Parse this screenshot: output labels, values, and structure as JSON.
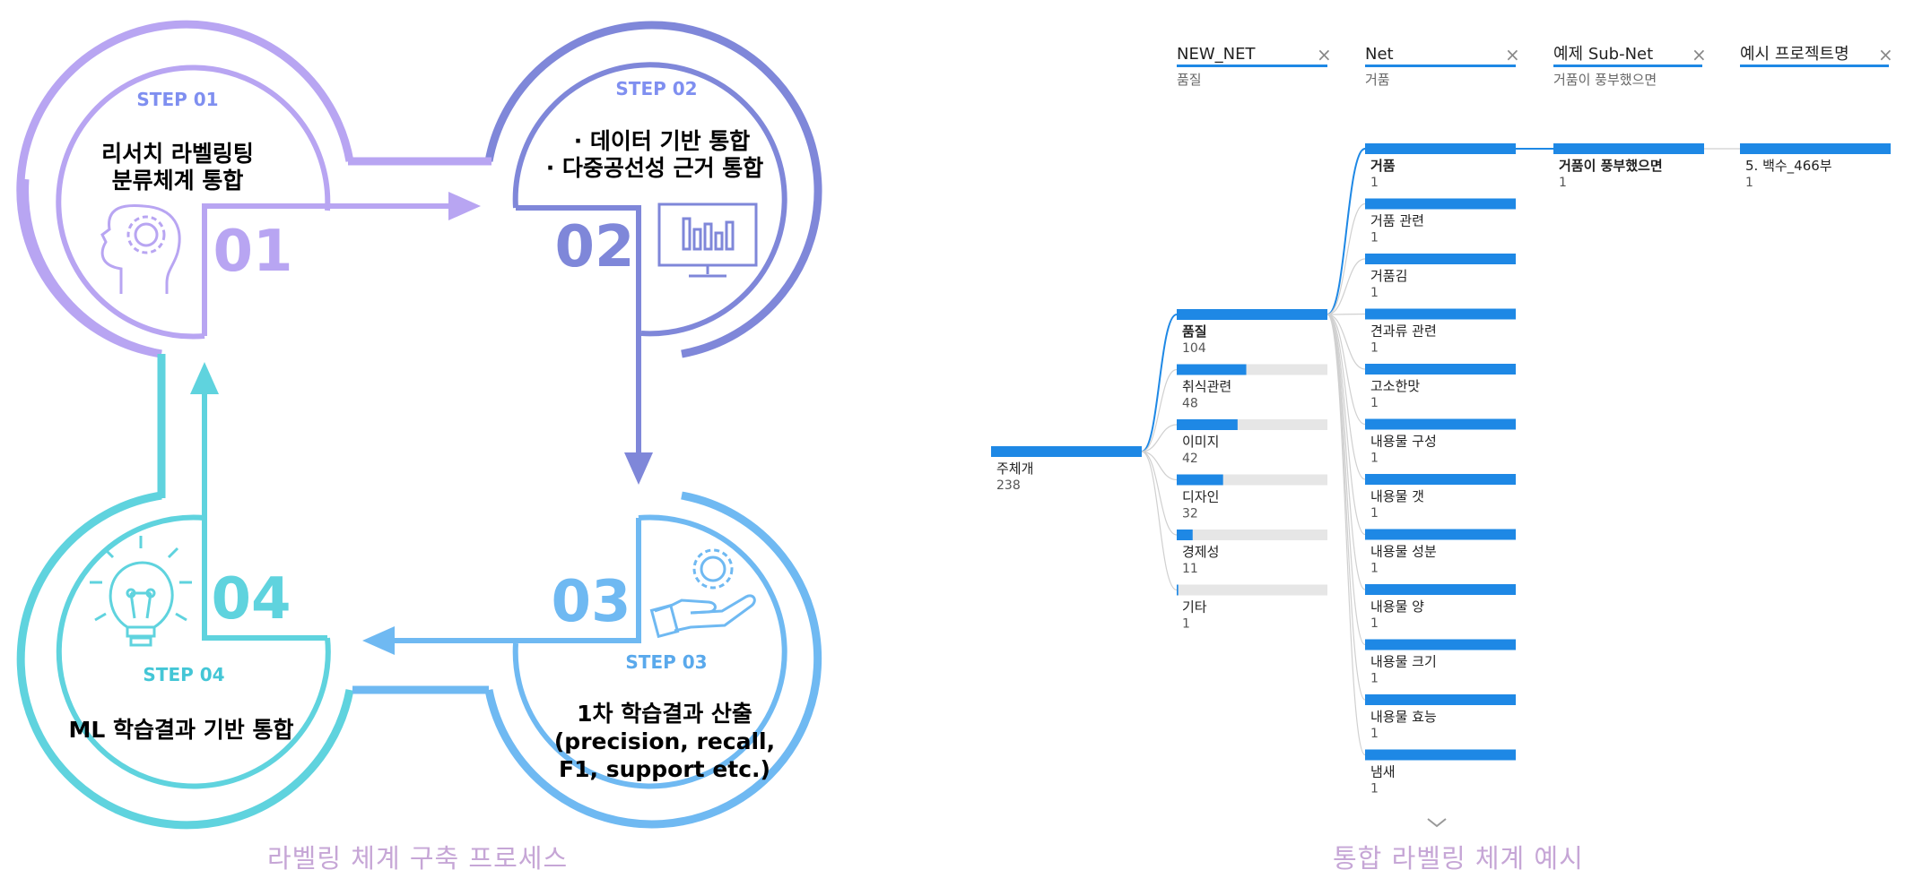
{
  "process": {
    "steps": [
      {
        "step_label": "STEP 01",
        "number": "01",
        "lines": [
          "리서치 라벨링팅",
          "분류체계 통합"
        ],
        "icon": "head-gear-icon",
        "color": "#b8a5f2",
        "dark": "#a58ef0"
      },
      {
        "step_label": "STEP 02",
        "number": "02",
        "lines": [
          "· 데이터 기반 통합",
          "· 다중공선성 근거 통합"
        ],
        "icon": "monitor-chart-icon",
        "color": "#7f87d9",
        "dark": "#6f78d2"
      },
      {
        "step_label": "STEP 03",
        "number": "03",
        "lines": [
          "1차 학습결과 산출",
          "(precision, recall,",
          "F1, support etc.)"
        ],
        "icon": "hand-gear-icon",
        "color": "#6fb9f2",
        "dark": "#5aa9ec"
      },
      {
        "step_label": "STEP 04",
        "number": "04",
        "lines": [
          "ML 학습결과 기반 통합"
        ],
        "icon": "lightbulb-icon",
        "color": "#5fd3de",
        "dark": "#44c6d6"
      }
    ],
    "caption": "라벨링 체계 구축 프로세스"
  },
  "tree": {
    "caption": "통합 라벨링 체계 예시",
    "accent": "#1e88e5",
    "columns": [
      {
        "title": "NEW_NET",
        "subtitle": "품질",
        "close": "×"
      },
      {
        "title": "Net",
        "subtitle": "거품",
        "close": "×"
      },
      {
        "title": "예제 Sub-Net",
        "subtitle": "거품이 풍부했으면",
        "close": "×"
      },
      {
        "title": "예시 프로젝트명",
        "subtitle": "",
        "close": "×"
      }
    ],
    "root": {
      "label": "주체개",
      "value": 238,
      "max": 238
    },
    "level1": [
      {
        "label": "품질",
        "value": 104,
        "max": 104,
        "selected": true
      },
      {
        "label": "취식관련",
        "value": 48,
        "max": 104
      },
      {
        "label": "이미지",
        "value": 42,
        "max": 104
      },
      {
        "label": "디자인",
        "value": 32,
        "max": 104
      },
      {
        "label": "경제성",
        "value": 11,
        "max": 104
      },
      {
        "label": "기타",
        "value": 1,
        "max": 104
      }
    ],
    "level2": [
      {
        "label": "거품",
        "value": 1,
        "selected": true
      },
      {
        "label": "거품 관련",
        "value": 1
      },
      {
        "label": "거품김",
        "value": 1
      },
      {
        "label": "견과류 관련",
        "value": 1
      },
      {
        "label": "고소한맛",
        "value": 1
      },
      {
        "label": "내용물 구성",
        "value": 1
      },
      {
        "label": "내용물 갯",
        "value": 1
      },
      {
        "label": "내용물 성분",
        "value": 1
      },
      {
        "label": "내용물 양",
        "value": 1
      },
      {
        "label": "내용물 크기",
        "value": 1
      },
      {
        "label": "내용물 효능",
        "value": 1
      },
      {
        "label": "냄새",
        "value": 1
      }
    ],
    "level3": [
      {
        "label": "거품이 풍부했으면",
        "value": 1,
        "selected": true
      }
    ],
    "level4": [
      {
        "label": "5. 백수_466부",
        "value": 1
      }
    ],
    "more_icon": "chevron-down-icon"
  }
}
